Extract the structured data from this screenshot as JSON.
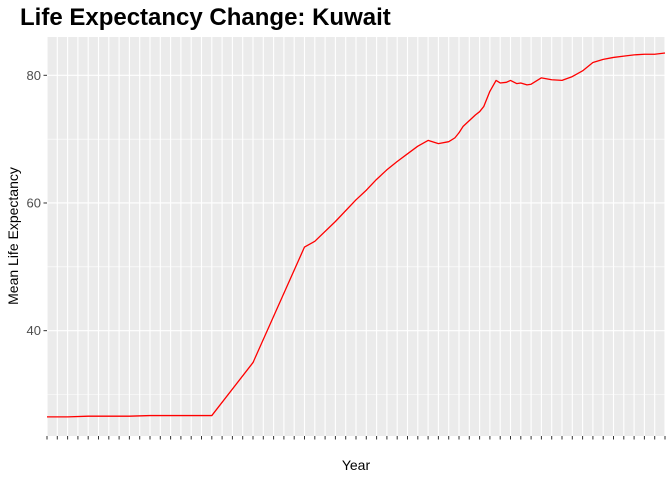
{
  "chart_data": {
    "type": "line",
    "title": "Life Expectancy Change: Kuwait",
    "xlabel": "Year",
    "ylabel": "Mean Life Expectancy",
    "xlim": [
      1800,
      2100
    ],
    "ylim": [
      23.5,
      86
    ],
    "y_ticks": [
      40,
      60,
      80
    ],
    "x_tick_step": 5,
    "grid": true,
    "legend": "none",
    "series": [
      {
        "color": "#ff0000",
        "x": [
          1800,
          1810,
          1820,
          1830,
          1840,
          1850,
          1860,
          1870,
          1880,
          1900,
          1925,
          1930,
          1940,
          1950,
          1955,
          1960,
          1965,
          1970,
          1975,
          1980,
          1985,
          1990,
          1995,
          1998,
          2000,
          2002,
          2005,
          2008,
          2010,
          2012,
          2015,
          2018,
          2020,
          2023,
          2025,
          2028,
          2030,
          2033,
          2035,
          2040,
          2045,
          2050,
          2055,
          2060,
          2065,
          2070,
          2075,
          2080,
          2085,
          2090,
          2095,
          2100
        ],
        "y": [
          26.5,
          26.5,
          26.6,
          26.6,
          26.6,
          26.7,
          26.7,
          26.7,
          26.7,
          35.0,
          53.1,
          54.0,
          57.1,
          60.5,
          62.0,
          63.7,
          65.2,
          66.5,
          67.7,
          68.9,
          69.8,
          69.3,
          69.6,
          70.2,
          71.0,
          72.0,
          72.9,
          73.8,
          74.3,
          75.1,
          77.5,
          79.2,
          78.8,
          78.9,
          79.2,
          78.7,
          78.8,
          78.5,
          78.6,
          79.6,
          79.3,
          79.2,
          79.8,
          80.7,
          82.0,
          82.5,
          82.8,
          83.0,
          83.2,
          83.3,
          83.3,
          83.5
        ]
      }
    ]
  }
}
